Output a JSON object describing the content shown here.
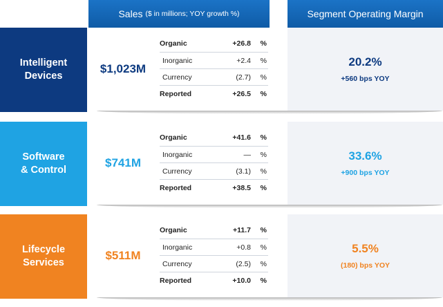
{
  "header": {
    "sales_main": "Sales",
    "sales_sub": "($ in millions; YOY growth %)",
    "margin": "Segment Operating Margin"
  },
  "colors": {
    "header_blue": "#1565b8",
    "intelligent_devices": "#0d3a80",
    "software_control": "#1fa3e3",
    "lifecycle_services": "#f08321"
  },
  "segments": [
    {
      "name_line1": "Intelligent",
      "name_line2": "Devices",
      "sales": "$1,023M",
      "lines": [
        {
          "label": "Organic",
          "value": "+26.8",
          "unit": "%"
        },
        {
          "label": "Inorganic",
          "value": "+2.4",
          "unit": "%"
        },
        {
          "label": "Currency",
          "value": "(2.7)",
          "unit": "%"
        },
        {
          "label": "Reported",
          "value": "+26.5",
          "unit": "%"
        }
      ],
      "margin": "20.2%",
      "margin_change": "+560 bps YOY"
    },
    {
      "name_line1": "Software",
      "name_line2": "& Control",
      "sales": "$741M",
      "lines": [
        {
          "label": "Organic",
          "value": "+41.6",
          "unit": "%"
        },
        {
          "label": "Inorganic",
          "value": "—",
          "unit": "%"
        },
        {
          "label": "Currency",
          "value": "(3.1)",
          "unit": "%"
        },
        {
          "label": "Reported",
          "value": "+38.5",
          "unit": "%"
        }
      ],
      "margin": "33.6%",
      "margin_change": "+900 bps YOY"
    },
    {
      "name_line1": "Lifecycle",
      "name_line2": "Services",
      "sales": "$511M",
      "lines": [
        {
          "label": "Organic",
          "value": "+11.7",
          "unit": "%"
        },
        {
          "label": "Inorganic",
          "value": "+0.8",
          "unit": "%"
        },
        {
          "label": "Currency",
          "value": "(2.5)",
          "unit": "%"
        },
        {
          "label": "Reported",
          "value": "+10.0",
          "unit": "%"
        }
      ],
      "margin": "5.5%",
      "margin_change": "(180) bps YOY"
    }
  ]
}
